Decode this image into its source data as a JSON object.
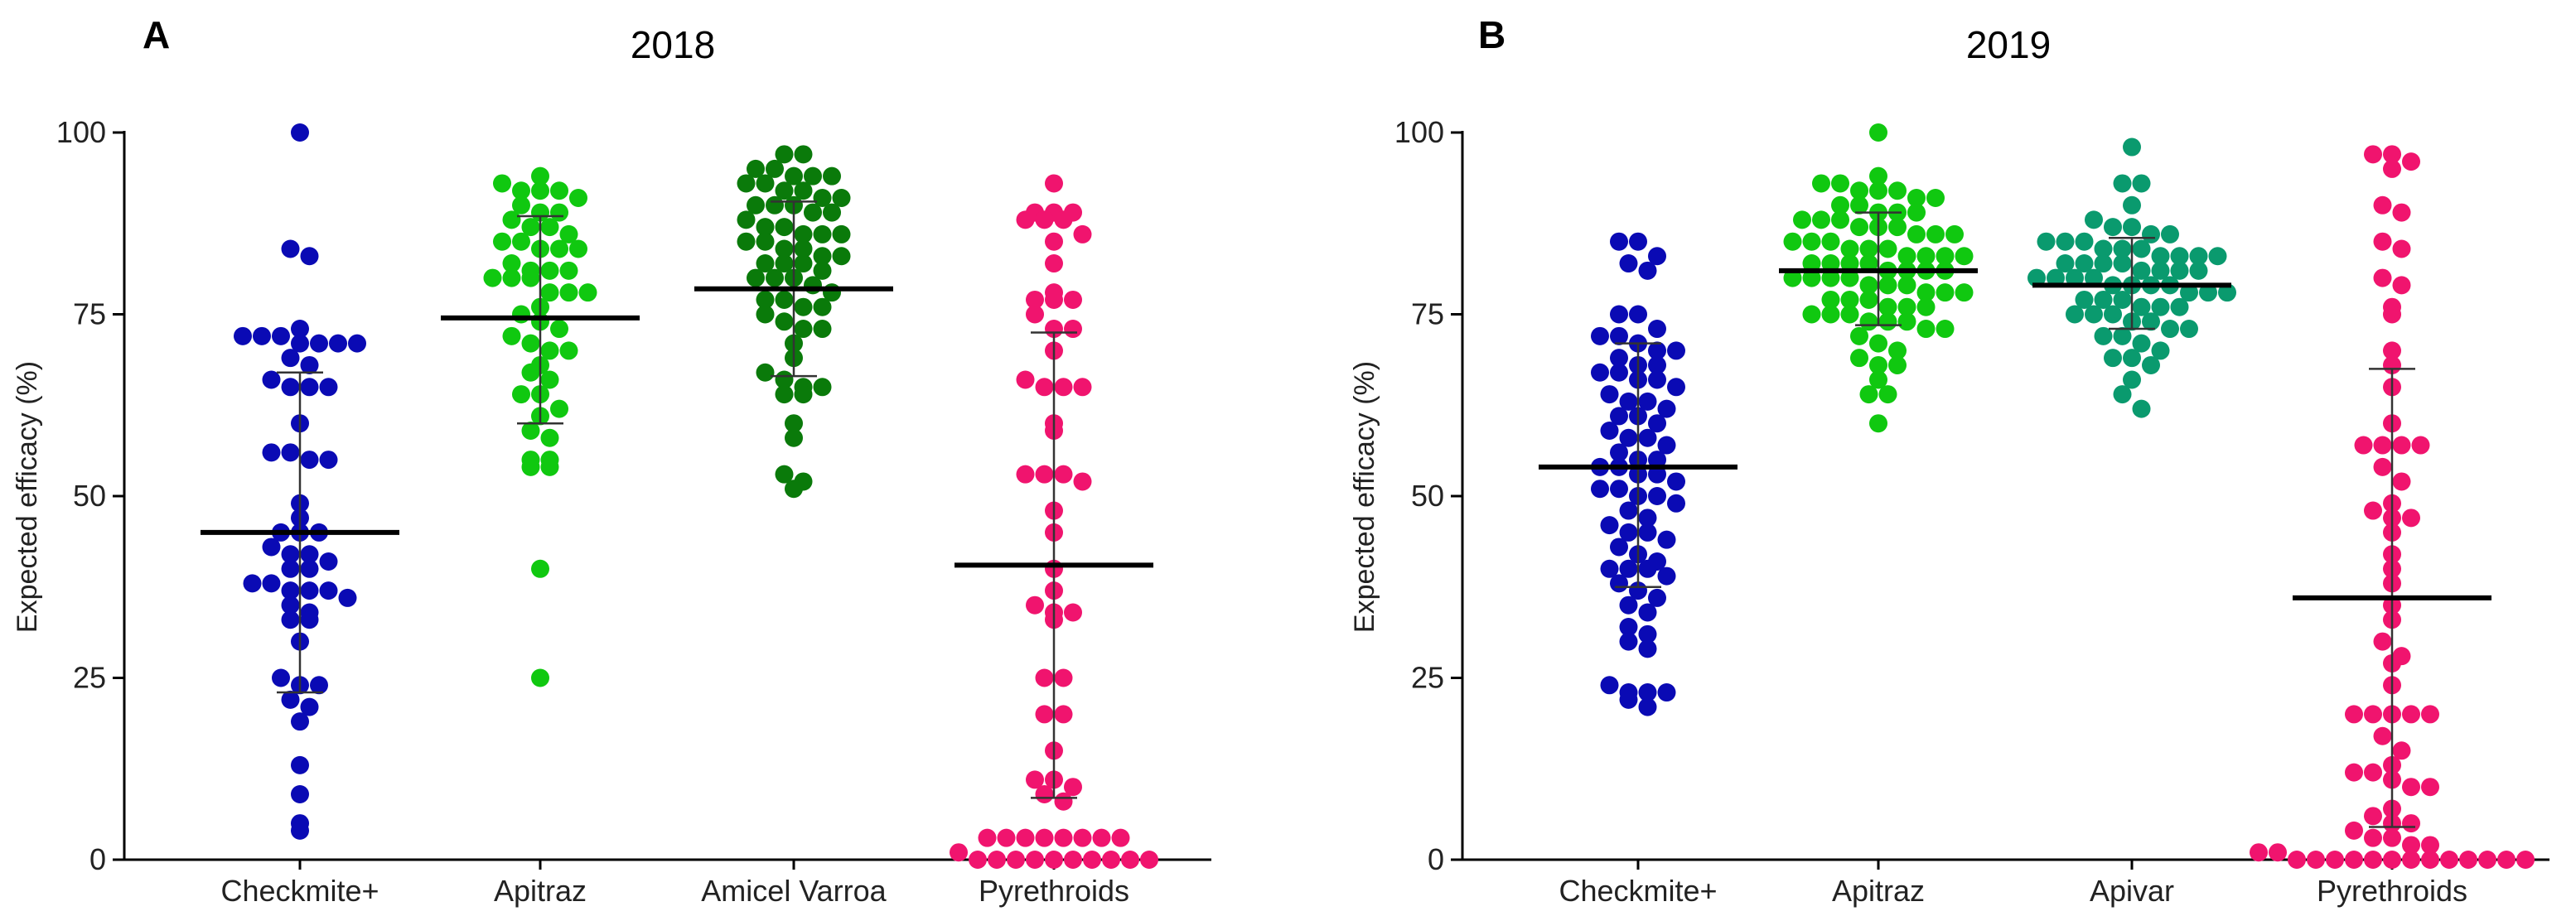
{
  "chart_data": [
    {
      "type": "scatter",
      "panel": "A",
      "title": "2018",
      "xlabel": "",
      "ylabel": "Expected efficacy (%)",
      "ylim": [
        0,
        100
      ],
      "yticks": [
        0,
        25,
        50,
        75,
        100
      ],
      "categories": [
        "Checkmite+",
        "Apitraz",
        "Amicel Varroa",
        "Pyrethroids"
      ],
      "series": [
        {
          "name": "Checkmite+",
          "color": "#0a0ab4",
          "mean": 45,
          "sd_low": 23,
          "sd_high": 67,
          "values": [
            100,
            84,
            83,
            73,
            72,
            72,
            72,
            71,
            71,
            71,
            71,
            69,
            68,
            66,
            65,
            65,
            65,
            60,
            56,
            56,
            55,
            55,
            49,
            47,
            45,
            45,
            45,
            43,
            42,
            42,
            41,
            40,
            40,
            38,
            38,
            37,
            37,
            37,
            36,
            35,
            34,
            33,
            33,
            30,
            25,
            24,
            24,
            22,
            21,
            19,
            13,
            9,
            5,
            4
          ]
        },
        {
          "name": "Apitraz",
          "color": "#10c810",
          "mean": 74.5,
          "sd_low": 60,
          "sd_high": 88.5,
          "values": [
            94,
            93,
            92,
            92,
            92,
            91,
            90,
            89,
            89,
            88,
            87,
            87,
            86,
            85,
            85,
            84,
            84,
            84,
            82,
            81,
            81,
            81,
            80,
            80,
            80,
            78,
            78,
            78,
            76,
            75,
            74,
            73,
            72,
            71,
            70,
            70,
            68,
            67,
            66,
            64,
            64,
            62,
            61,
            59,
            58,
            55,
            55,
            54,
            54,
            40,
            25
          ]
        },
        {
          "name": "Amicel Varroa",
          "color": "#0a7a0a",
          "mean": 78.5,
          "sd_low": 66.5,
          "sd_high": 90.5,
          "values": [
            97,
            97,
            95,
            95,
            94,
            94,
            94,
            93,
            93,
            92,
            92,
            91,
            91,
            90,
            90,
            90,
            89,
            89,
            88,
            87,
            87,
            86,
            86,
            86,
            85,
            85,
            84,
            84,
            83,
            83,
            82,
            82,
            82,
            81,
            80,
            80,
            80,
            79,
            78,
            77,
            77,
            76,
            76,
            75,
            74,
            73,
            73,
            71,
            69,
            67,
            66,
            65,
            65,
            64,
            64,
            60,
            58,
            53,
            52,
            51
          ]
        },
        {
          "name": "Pyrethroids",
          "color": "#f0146e",
          "mean": 40.5,
          "sd_low": 8.5,
          "sd_high": 72.5,
          "values": [
            93,
            89,
            89,
            89,
            88,
            88,
            88,
            86,
            85,
            82,
            78,
            77,
            77,
            77,
            75,
            73,
            73,
            70,
            66,
            65,
            65,
            65,
            60,
            59,
            53,
            53,
            53,
            52,
            48,
            45,
            40,
            37,
            35,
            34,
            34,
            33,
            25,
            25,
            20,
            20,
            15,
            11,
            11,
            10,
            9,
            8,
            3,
            3,
            3,
            3,
            3,
            3,
            3,
            3,
            1,
            0,
            0,
            0,
            0,
            0,
            0,
            0,
            0,
            0,
            0
          ]
        }
      ]
    },
    {
      "type": "scatter",
      "panel": "B",
      "title": "2019",
      "xlabel": "",
      "ylabel": "Expected efficacy (%)",
      "ylim": [
        0,
        100
      ],
      "yticks": [
        0,
        25,
        50,
        75,
        100
      ],
      "categories": [
        "Checkmite+",
        "Apitraz",
        "Apivar",
        "Pyrethroids"
      ],
      "series": [
        {
          "name": "Checkmite+",
          "color": "#0a0ab4",
          "mean": 54,
          "sd_low": 37.5,
          "sd_high": 71,
          "values": [
            85,
            85,
            83,
            82,
            81,
            75,
            75,
            73,
            72,
            72,
            71,
            70,
            70,
            69,
            68,
            68,
            67,
            67,
            66,
            66,
            65,
            64,
            63,
            63,
            62,
            61,
            61,
            60,
            59,
            58,
            58,
            57,
            56,
            55,
            55,
            54,
            54,
            53,
            53,
            52,
            51,
            51,
            50,
            50,
            49,
            48,
            47,
            46,
            45,
            45,
            44,
            43,
            42,
            41,
            40,
            40,
            40,
            39,
            38,
            37,
            36,
            35,
            34,
            32,
            31,
            30,
            29,
            24,
            23,
            23,
            23,
            22,
            21
          ]
        },
        {
          "name": "Apitraz",
          "color": "#10c810",
          "mean": 81,
          "sd_low": 73.5,
          "sd_high": 89,
          "values": [
            100,
            94,
            93,
            93,
            92,
            92,
            92,
            91,
            91,
            90,
            90,
            89,
            89,
            89,
            88,
            88,
            88,
            87,
            87,
            87,
            86,
            86,
            86,
            85,
            85,
            85,
            84,
            84,
            84,
            83,
            83,
            83,
            83,
            82,
            82,
            82,
            82,
            81,
            81,
            81,
            81,
            80,
            80,
            80,
            80,
            79,
            79,
            79,
            78,
            78,
            78,
            77,
            77,
            77,
            76,
            76,
            76,
            75,
            75,
            75,
            74,
            74,
            74,
            73,
            73,
            72,
            71,
            70,
            69,
            68,
            68,
            66,
            64,
            64,
            60
          ]
        },
        {
          "name": "Apivar",
          "color": "#0a9a6e",
          "mean": 79,
          "sd_low": 73,
          "sd_high": 85.5,
          "values": [
            98,
            93,
            93,
            90,
            88,
            87,
            87,
            86,
            86,
            85,
            85,
            85,
            84,
            84,
            84,
            83,
            83,
            83,
            83,
            82,
            82,
            82,
            82,
            81,
            81,
            81,
            81,
            80,
            80,
            80,
            80,
            79,
            79,
            79,
            79,
            78,
            78,
            78,
            77,
            77,
            77,
            76,
            76,
            76,
            75,
            75,
            75,
            74,
            74,
            73,
            73,
            72,
            72,
            71,
            70,
            69,
            69,
            68,
            66,
            64,
            62
          ]
        },
        {
          "name": "Pyrethroids",
          "color": "#f0146e",
          "mean": 36,
          "sd_low": 4.5,
          "sd_high": 67.5,
          "values": [
            97,
            97,
            96,
            95,
            90,
            89,
            85,
            84,
            80,
            79,
            76,
            75,
            70,
            68,
            65,
            60,
            57,
            57,
            57,
            57,
            54,
            52,
            49,
            48,
            47,
            47,
            45,
            42,
            40,
            38,
            35,
            33,
            30,
            28,
            27,
            24,
            20,
            20,
            20,
            20,
            20,
            17,
            15,
            13,
            12,
            12,
            11,
            10,
            10,
            7,
            6,
            5,
            5,
            4,
            3,
            3,
            2,
            2,
            1,
            1,
            0,
            0,
            0,
            0,
            0,
            0,
            0,
            0,
            0,
            0,
            0,
            0,
            0
          ]
        }
      ]
    }
  ]
}
